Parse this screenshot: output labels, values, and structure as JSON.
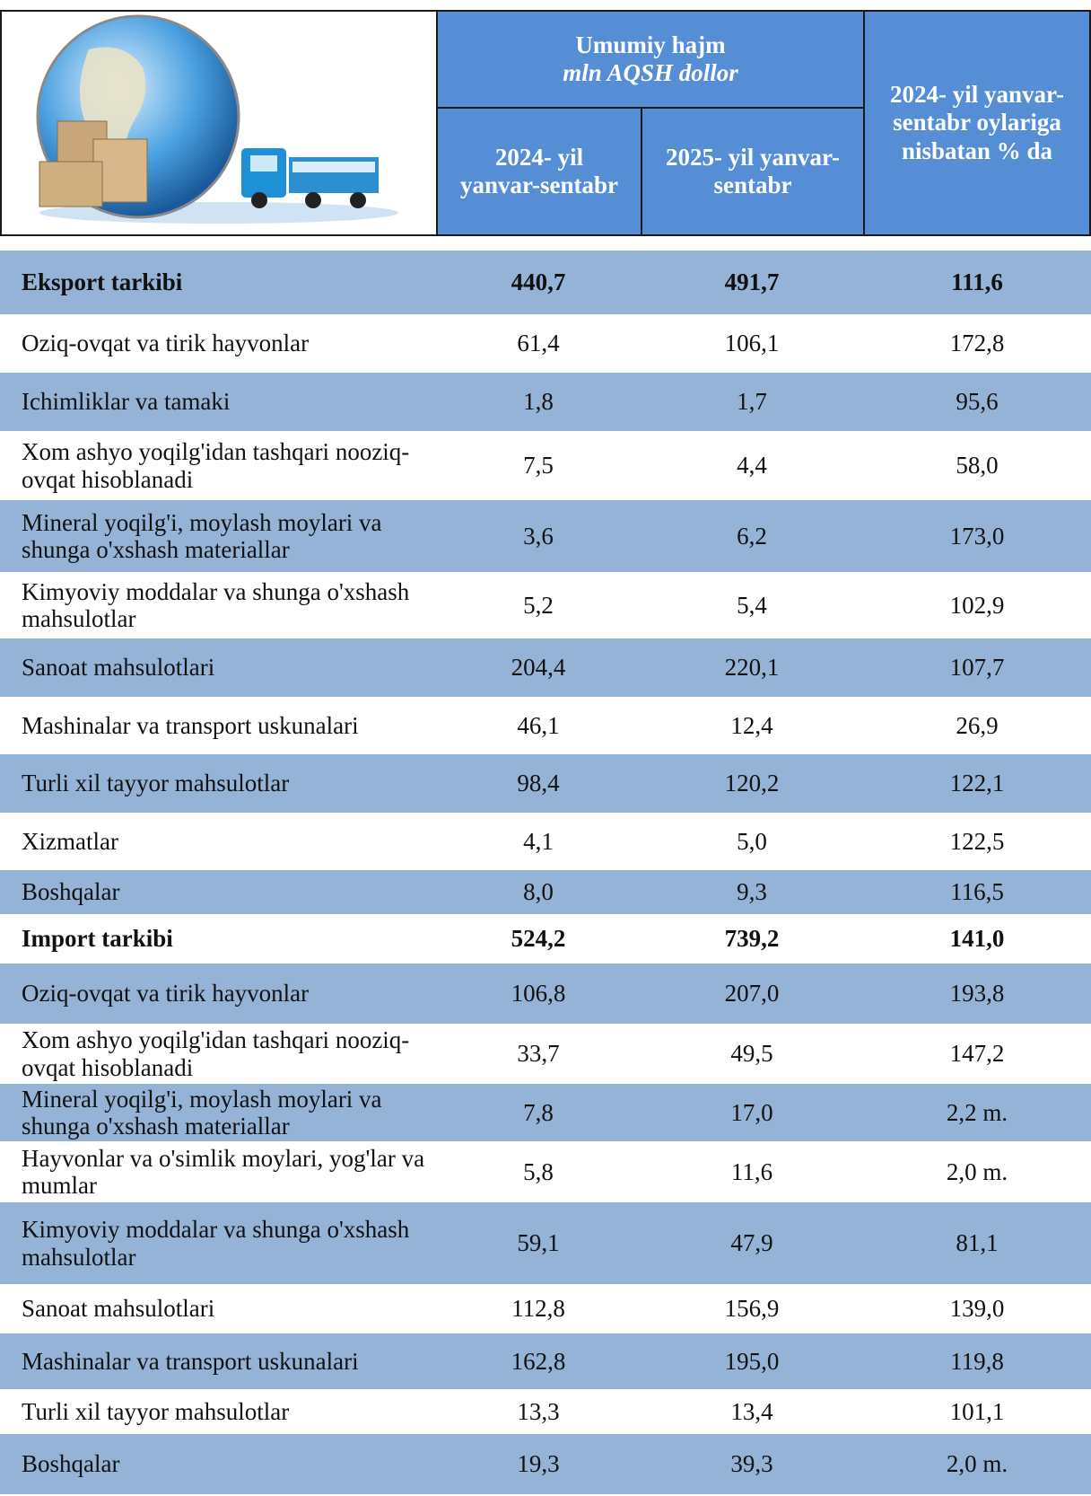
{
  "table": {
    "header": {
      "group": "Umumiy hajm",
      "unit": "mln AQSH dollor",
      "col1": "2024- yil yanvar-sentabr",
      "col2": "2025- yil yanvar-sentabr",
      "col3": "2024- yil yanvar-sentabr oylariga nisbatan % da"
    },
    "sections": [
      {
        "title": [
          "Eksport tarkibi",
          "440,7",
          "491,7",
          "111,6"
        ],
        "rows": [
          [
            "Oziq-ovqat va tirik hayvonlar",
            "61,4",
            "106,1",
            "172,8"
          ],
          [
            "Ichimliklar va tamaki",
            "1,8",
            "1,7",
            "95,6"
          ],
          [
            "Xom ashyo yoqilg'idan tashqari nooziq-ovqat hisoblanadi",
            "7,5",
            "4,4",
            "58,0"
          ],
          [
            "Mineral yoqilg'i, moylash moylari va shunga o'xshash materiallar",
            "3,6",
            "6,2",
            "173,0"
          ],
          [
            "Kimyoviy moddalar va shunga o'xshash mahsulotlar",
            "5,2",
            "5,4",
            "102,9"
          ],
          [
            "Sanoat mahsulotlari",
            "204,4",
            "220,1",
            "107,7"
          ],
          [
            "Mashinalar va transport uskunalari",
            "46,1",
            "12,4",
            "26,9"
          ],
          [
            "Turli xil tayyor mahsulotlar",
            "98,4",
            "120,2",
            "122,1"
          ],
          [
            "Xizmatlar",
            "4,1",
            "5,0",
            "122,5"
          ],
          [
            "Boshqalar",
            "8,0",
            "9,3",
            "116,5"
          ]
        ]
      },
      {
        "title": [
          "Import tarkibi",
          "524,2",
          "739,2",
          "141,0"
        ],
        "rows": [
          [
            "Oziq-ovqat va tirik hayvonlar",
            "106,8",
            "207,0",
            "193,8"
          ],
          [
            "Xom ashyo yoqilg'idan tashqari nooziq-ovqat hisoblanadi",
            "33,7",
            "49,5",
            "147,2"
          ],
          [
            "Mineral yoqilg'i, moylash moylari va shunga o'xshash materiallar",
            "7,8",
            "17,0",
            "2,2 m."
          ],
          [
            "Hayvonlar va o'simlik moylari, yog'lar va mumlar",
            "5,8",
            "11,6",
            "2,0 m."
          ],
          [
            "Kimyoviy moddalar va shunga o'xshash mahsulotlar",
            "59,1",
            "47,9",
            "81,1"
          ],
          [
            "Sanoat mahsulotlari",
            "112,8",
            "156,9",
            "139,0"
          ],
          [
            "Mashinalar va transport uskunalari",
            "162,8",
            "195,0",
            "119,8"
          ],
          [
            "Turli xil tayyor mahsulotlar",
            "13,3",
            "13,4",
            "101,1"
          ],
          [
            "Boshqalar",
            "19,3",
            "39,3",
            "2,0 m."
          ]
        ]
      }
    ]
  }
}
